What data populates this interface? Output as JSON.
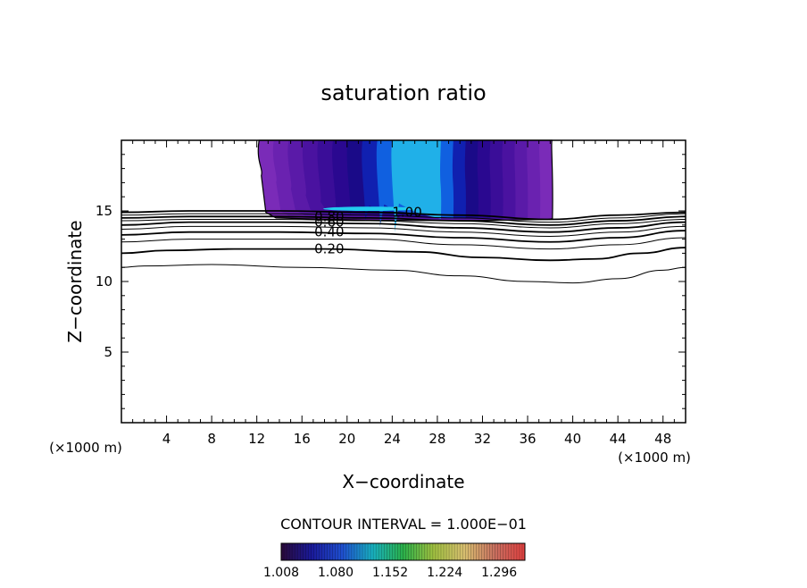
{
  "chart_data": {
    "type": "contour",
    "title": "saturation ratio",
    "xlabel": "X−coordinate",
    "ylabel": "Z−coordinate",
    "x_unit_label": "(×1000 m)",
    "y_unit_label": "(×1000 m)",
    "xlim": [
      0,
      50
    ],
    "ylim": [
      0,
      20
    ],
    "x_ticks": [
      4,
      8,
      12,
      16,
      20,
      24,
      28,
      32,
      36,
      40,
      44,
      48
    ],
    "y_ticks": [
      5,
      10,
      15
    ],
    "x_tick_labels": [
      "4",
      "8",
      "12",
      "16",
      "20",
      "24",
      "28",
      "32",
      "36",
      "40",
      "44",
      "48"
    ],
    "y_tick_labels": [
      "5",
      "10",
      "15"
    ],
    "contour_interval_label": "CONTOUR INTERVAL = 1.000E−01",
    "contour_levels": [
      0.1,
      0.2,
      0.3,
      0.4,
      0.5,
      0.6,
      0.7,
      0.8,
      0.9,
      1.0
    ],
    "contour_labels": [
      {
        "text": "0.20",
        "x": 17.1,
        "z": 12.3
      },
      {
        "text": "0.40",
        "x": 17.1,
        "z": 13.5
      },
      {
        "text": "0.60",
        "x": 17.1,
        "z": 14.2
      },
      {
        "text": "0.80",
        "x": 17.1,
        "z": 14.6
      },
      {
        "text": "1.00",
        "x": 24.0,
        "z": 14.9
      }
    ],
    "contour_lines": [
      {
        "level": 0.1,
        "points": [
          [
            0,
            11
          ],
          [
            2,
            11.1
          ],
          [
            8,
            11.2
          ],
          [
            16,
            11.0
          ],
          [
            24,
            10.8
          ],
          [
            30,
            10.4
          ],
          [
            36,
            10.0
          ],
          [
            40,
            9.9
          ],
          [
            44,
            10.2
          ],
          [
            48,
            10.8
          ],
          [
            50,
            11.0
          ]
        ]
      },
      {
        "level": 0.2,
        "points": [
          [
            0,
            12.0
          ],
          [
            4,
            12.2
          ],
          [
            10,
            12.3
          ],
          [
            18,
            12.3
          ],
          [
            26,
            12.1
          ],
          [
            32,
            11.7
          ],
          [
            38,
            11.5
          ],
          [
            42,
            11.6
          ],
          [
            46,
            12.0
          ],
          [
            50,
            12.4
          ]
        ]
      },
      {
        "level": 0.3,
        "points": [
          [
            0,
            12.8
          ],
          [
            6,
            13.0
          ],
          [
            14,
            13.0
          ],
          [
            22,
            13.0
          ],
          [
            30,
            12.6
          ],
          [
            38,
            12.3
          ],
          [
            44,
            12.6
          ],
          [
            50,
            13.1
          ]
        ]
      },
      {
        "level": 0.4,
        "points": [
          [
            0,
            13.3
          ],
          [
            6,
            13.5
          ],
          [
            14,
            13.5
          ],
          [
            22,
            13.4
          ],
          [
            30,
            13.1
          ],
          [
            38,
            12.8
          ],
          [
            44,
            13.1
          ],
          [
            50,
            13.6
          ]
        ]
      },
      {
        "level": 0.5,
        "points": [
          [
            0,
            13.7
          ],
          [
            6,
            13.9
          ],
          [
            14,
            13.9
          ],
          [
            22,
            13.8
          ],
          [
            30,
            13.5
          ],
          [
            38,
            13.2
          ],
          [
            44,
            13.5
          ],
          [
            50,
            13.9
          ]
        ]
      },
      {
        "level": 0.6,
        "points": [
          [
            0,
            14.0
          ],
          [
            6,
            14.2
          ],
          [
            14,
            14.2
          ],
          [
            22,
            14.1
          ],
          [
            30,
            13.8
          ],
          [
            38,
            13.5
          ],
          [
            44,
            13.8
          ],
          [
            50,
            14.2
          ]
        ]
      },
      {
        "level": 0.7,
        "points": [
          [
            0,
            14.3
          ],
          [
            6,
            14.4
          ],
          [
            14,
            14.4
          ],
          [
            22,
            14.3
          ],
          [
            30,
            14.1
          ],
          [
            38,
            13.8
          ],
          [
            44,
            14.1
          ],
          [
            50,
            14.4
          ]
        ]
      },
      {
        "level": 0.8,
        "points": [
          [
            0,
            14.5
          ],
          [
            6,
            14.6
          ],
          [
            14,
            14.6
          ],
          [
            22,
            14.5
          ],
          [
            30,
            14.3
          ],
          [
            38,
            14.0
          ],
          [
            44,
            14.3
          ],
          [
            50,
            14.6
          ]
        ]
      },
      {
        "level": 0.9,
        "points": [
          [
            0,
            14.7
          ],
          [
            6,
            14.8
          ],
          [
            14,
            14.8
          ],
          [
            22,
            14.7
          ],
          [
            30,
            14.5
          ],
          [
            38,
            14.2
          ],
          [
            44,
            14.5
          ],
          [
            50,
            14.8
          ]
        ]
      },
      {
        "level": 1.0,
        "points": [
          [
            0,
            14.9
          ],
          [
            6,
            15.0
          ],
          [
            14,
            15.0
          ],
          [
            22,
            14.9
          ],
          [
            30,
            14.7
          ],
          [
            38,
            14.4
          ],
          [
            44,
            14.7
          ],
          [
            50,
            14.9
          ]
        ]
      }
    ],
    "supersaturation_region": {
      "x_range": [
        12.2,
        38.2
      ],
      "z_range": [
        14.4,
        20
      ],
      "max_location": [
        26,
        15.1
      ]
    },
    "colorbar": {
      "min": 1.008,
      "max": 1.33,
      "tick_values": [
        1.008,
        1.08,
        1.152,
        1.224,
        1.296
      ],
      "tick_labels": [
        "1.008",
        "1.080",
        "1.152",
        "1.224",
        "1.296"
      ],
      "colors": [
        "#2a0a3a",
        "#1a1a9a",
        "#1f4fd0",
        "#18b0c0",
        "#2ab04a",
        "#a0c040",
        "#d8c070",
        "#c87060",
        "#e04040"
      ]
    },
    "fill_colors": [
      "#7a2bb8",
      "#6a22b0",
      "#5a1aa8",
      "#4a12a0",
      "#3a0d98",
      "#2a0890",
      "#1a0a88",
      "#1020b0",
      "#1060e0",
      "#20b0e8"
    ],
    "grid": false
  }
}
